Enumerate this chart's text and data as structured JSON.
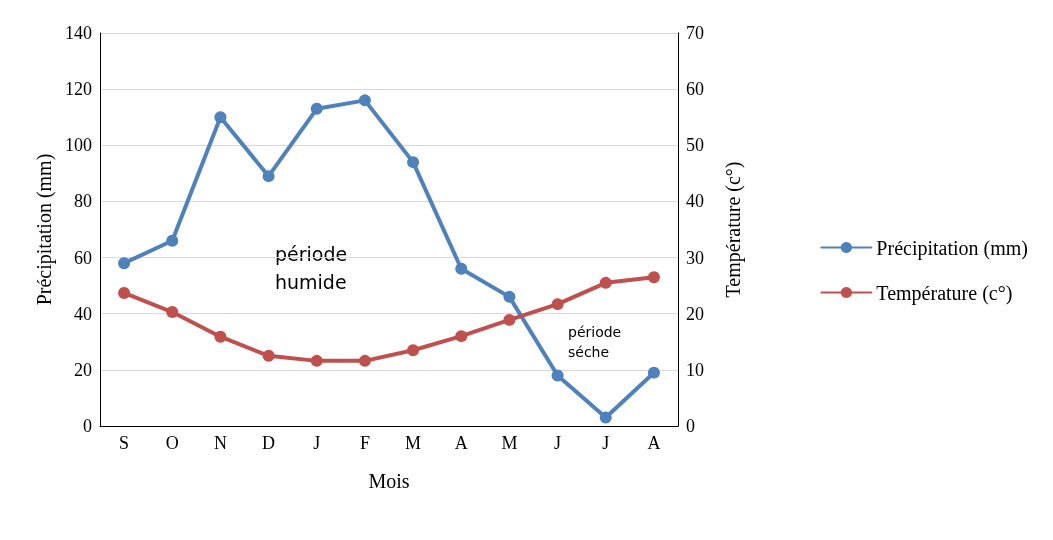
{
  "chart_data": {
    "type": "line",
    "xlabel": "Mois",
    "ylabel": "Précipitation (mm)",
    "y2label": "Température (c°)",
    "categories": [
      "S",
      "O",
      "N",
      "D",
      "J",
      "F",
      "M",
      "A",
      "M",
      "J",
      "J",
      "A"
    ],
    "series": [
      {
        "name": "Précipitation (mm)",
        "color": "#4f81bd",
        "values": [
          58,
          66,
          110,
          89,
          113,
          116,
          94,
          56,
          46,
          18,
          3,
          19
        ]
      },
      {
        "name": "Température (c°)",
        "color": "#c0504d",
        "axis": "y2",
        "values": [
          23.7,
          20.3,
          15.9,
          12.5,
          11.6,
          11.6,
          13.5,
          16,
          18.9,
          21.7,
          25.5,
          26.5
        ]
      }
    ],
    "ylim": [
      0,
      140
    ],
    "yticks": [
      0,
      20,
      40,
      60,
      80,
      100,
      120,
      140
    ],
    "y2lim": [
      0,
      70
    ],
    "y2ticks": [
      0,
      10,
      20,
      30,
      40,
      50,
      60,
      70
    ],
    "annotations": [
      "période humide",
      "période séche"
    ],
    "grid": "y",
    "legend": "right",
    "marker": "circle",
    "line_style": "solid"
  }
}
